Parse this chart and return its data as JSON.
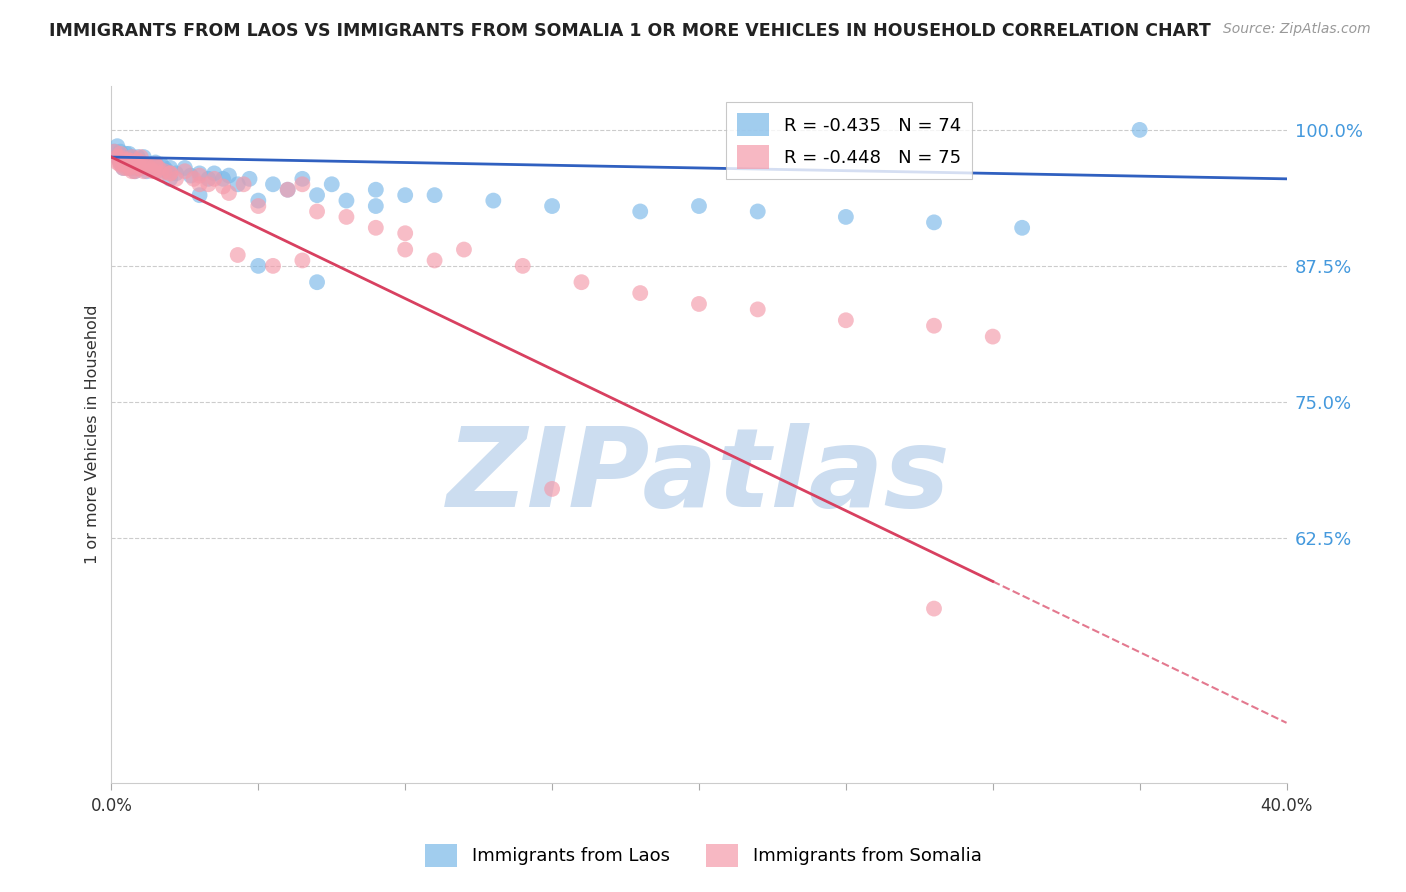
{
  "title": "IMMIGRANTS FROM LAOS VS IMMIGRANTS FROM SOMALIA 1 OR MORE VEHICLES IN HOUSEHOLD CORRELATION CHART",
  "source": "Source: ZipAtlas.com",
  "ylabel": "1 or more Vehicles in Household",
  "xmin": 0.0,
  "xmax": 0.4,
  "ymin": 0.4,
  "ymax": 1.04,
  "yticks": [
    1.0,
    0.875,
    0.75,
    0.625
  ],
  "ytick_labels": [
    "100.0%",
    "87.5%",
    "75.0%",
    "62.5%"
  ],
  "xticks": [
    0.0,
    0.05,
    0.1,
    0.15,
    0.2,
    0.25,
    0.3,
    0.35,
    0.4
  ],
  "laos_R": -0.435,
  "laos_N": 74,
  "somalia_R": -0.448,
  "somalia_N": 75,
  "laos_color": "#7ab8e8",
  "somalia_color": "#f49aaa",
  "laos_line_color": "#3060c0",
  "somalia_line_color": "#d84060",
  "background_color": "#ffffff",
  "grid_color": "#cccccc",
  "watermark": "ZIPatlas",
  "watermark_color": "#ccddf0",
  "laos_x": [
    0.001,
    0.002,
    0.002,
    0.003,
    0.003,
    0.003,
    0.004,
    0.004,
    0.004,
    0.005,
    0.005,
    0.005,
    0.006,
    0.006,
    0.006,
    0.006,
    0.007,
    0.007,
    0.007,
    0.008,
    0.008,
    0.008,
    0.009,
    0.009,
    0.009,
    0.01,
    0.01,
    0.011,
    0.011,
    0.012,
    0.012,
    0.013,
    0.014,
    0.015,
    0.015,
    0.016,
    0.017,
    0.018,
    0.019,
    0.02,
    0.022,
    0.025,
    0.027,
    0.03,
    0.033,
    0.035,
    0.038,
    0.04,
    0.043,
    0.047,
    0.05,
    0.055,
    0.06,
    0.065,
    0.07,
    0.075,
    0.08,
    0.09,
    0.1,
    0.11,
    0.13,
    0.15,
    0.18,
    0.2,
    0.22,
    0.25,
    0.28,
    0.31,
    0.35,
    0.02,
    0.03,
    0.05,
    0.07,
    0.09
  ],
  "laos_y": [
    0.98,
    0.975,
    0.985,
    0.975,
    0.97,
    0.98,
    0.97,
    0.975,
    0.965,
    0.972,
    0.978,
    0.968,
    0.972,
    0.968,
    0.978,
    0.965,
    0.975,
    0.97,
    0.965,
    0.972,
    0.968,
    0.962,
    0.97,
    0.965,
    0.975,
    0.97,
    0.965,
    0.975,
    0.968,
    0.968,
    0.962,
    0.965,
    0.968,
    0.97,
    0.965,
    0.962,
    0.968,
    0.965,
    0.962,
    0.965,
    0.96,
    0.965,
    0.958,
    0.96,
    0.955,
    0.96,
    0.955,
    0.958,
    0.95,
    0.955,
    0.935,
    0.95,
    0.945,
    0.955,
    0.94,
    0.95,
    0.935,
    0.945,
    0.94,
    0.94,
    0.935,
    0.93,
    0.925,
    0.93,
    0.925,
    0.92,
    0.915,
    0.91,
    1.0,
    0.955,
    0.94,
    0.875,
    0.86,
    0.93
  ],
  "somalia_x": [
    0.001,
    0.002,
    0.002,
    0.003,
    0.003,
    0.003,
    0.004,
    0.004,
    0.004,
    0.005,
    0.005,
    0.005,
    0.006,
    0.006,
    0.006,
    0.007,
    0.007,
    0.007,
    0.008,
    0.008,
    0.008,
    0.009,
    0.009,
    0.009,
    0.01,
    0.01,
    0.011,
    0.011,
    0.012,
    0.013,
    0.014,
    0.015,
    0.015,
    0.016,
    0.017,
    0.018,
    0.02,
    0.022,
    0.025,
    0.028,
    0.03,
    0.033,
    0.035,
    0.038,
    0.04,
    0.043,
    0.05,
    0.055,
    0.06,
    0.065,
    0.07,
    0.08,
    0.09,
    0.1,
    0.11,
    0.12,
    0.14,
    0.16,
    0.18,
    0.2,
    0.22,
    0.25,
    0.28,
    0.3,
    0.003,
    0.006,
    0.01,
    0.015,
    0.02,
    0.03,
    0.045,
    0.065,
    0.1,
    0.15,
    0.28
  ],
  "somalia_y": [
    0.98,
    0.975,
    0.97,
    0.978,
    0.968,
    0.975,
    0.972,
    0.965,
    0.97,
    0.972,
    0.968,
    0.965,
    0.972,
    0.965,
    0.97,
    0.975,
    0.968,
    0.962,
    0.97,
    0.968,
    0.962,
    0.968,
    0.965,
    0.972,
    0.965,
    0.97,
    0.968,
    0.962,
    0.968,
    0.965,
    0.962,
    0.968,
    0.962,
    0.965,
    0.96,
    0.962,
    0.96,
    0.955,
    0.962,
    0.955,
    0.95,
    0.95,
    0.955,
    0.948,
    0.942,
    0.885,
    0.93,
    0.875,
    0.945,
    0.95,
    0.925,
    0.92,
    0.91,
    0.905,
    0.88,
    0.89,
    0.875,
    0.86,
    0.85,
    0.84,
    0.835,
    0.825,
    0.82,
    0.81,
    0.97,
    0.972,
    0.975,
    0.968,
    0.96,
    0.958,
    0.95,
    0.88,
    0.89,
    0.67,
    0.56
  ]
}
